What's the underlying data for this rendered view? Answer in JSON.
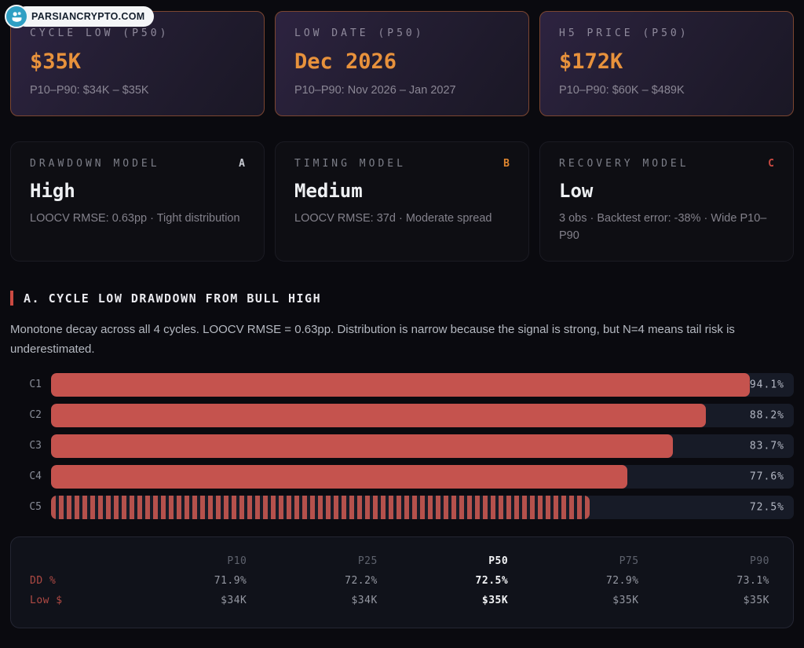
{
  "logo": {
    "text": "PARSIANCRYPTO.COM"
  },
  "stat_cards": [
    {
      "title": "CYCLE LOW (P50)",
      "value": "$35K",
      "range": "P10–P90: $34K – $35K"
    },
    {
      "title": "LOW DATE (P50)",
      "value": "Dec 2026",
      "range": "P10–P90: Nov 2026 – Jan 2027"
    },
    {
      "title": "H5 PRICE (P50)",
      "value": "$172K",
      "range": "P10–P90: $60K – $489K"
    }
  ],
  "model_cards": [
    {
      "title": "DRAWDOWN MODEL",
      "badge": "A",
      "badge_color": "#c9ccd4",
      "level": "High",
      "detail": "LOOCV RMSE: 0.63pp · Tight distribution"
    },
    {
      "title": "TIMING MODEL",
      "badge": "B",
      "badge_color": "#e0862f",
      "level": "Medium",
      "detail": "LOOCV RMSE: 37d · Moderate spread"
    },
    {
      "title": "RECOVERY MODEL",
      "badge": "C",
      "badge_color": "#cc4a42",
      "level": "Low",
      "detail": "3 obs · Backtest error: -38% · Wide P10–P90"
    }
  ],
  "section": {
    "heading": "A. CYCLE LOW DRAWDOWN FROM BULL HIGH",
    "description": "Monotone decay across all 4 cycles. LOOCV RMSE = 0.63pp. Distribution is narrow because the signal is strong, but N=4 means tail risk is underestimated."
  },
  "chart_data": {
    "type": "bar",
    "orientation": "horizontal",
    "title": "A. CYCLE LOW DRAWDOWN FROM BULL HIGH",
    "categories": [
      "C1",
      "C2",
      "C3",
      "C4",
      "C5"
    ],
    "values": [
      94.1,
      88.2,
      83.7,
      77.6,
      72.5
    ],
    "value_labels": [
      "94.1%",
      "88.2%",
      "83.7%",
      "77.6%",
      "72.5%"
    ],
    "bar_styles": [
      "solid",
      "solid",
      "solid",
      "solid",
      "striped"
    ],
    "xlim": [
      0,
      100
    ],
    "bar_color": "#c5534e",
    "track_color": "#171b27",
    "grid": false,
    "legend": "none"
  },
  "percentile_table": {
    "columns": [
      "P10",
      "P25",
      "P50",
      "P75",
      "P90"
    ],
    "highlight_column": "P50",
    "rows": [
      {
        "label": "DD %",
        "values": [
          "71.9%",
          "72.2%",
          "72.5%",
          "72.9%",
          "73.1%"
        ]
      },
      {
        "label": "Low $",
        "values": [
          "$34K",
          "$34K",
          "$35K",
          "$35K",
          "$35K"
        ]
      }
    ]
  },
  "colors": {
    "page_bg": "#0a0a0f",
    "accent_orange": "#e8923c",
    "accent_red": "#cc4a42",
    "stat_card_border": "#7c4631",
    "bar_fill": "#c5534e"
  }
}
